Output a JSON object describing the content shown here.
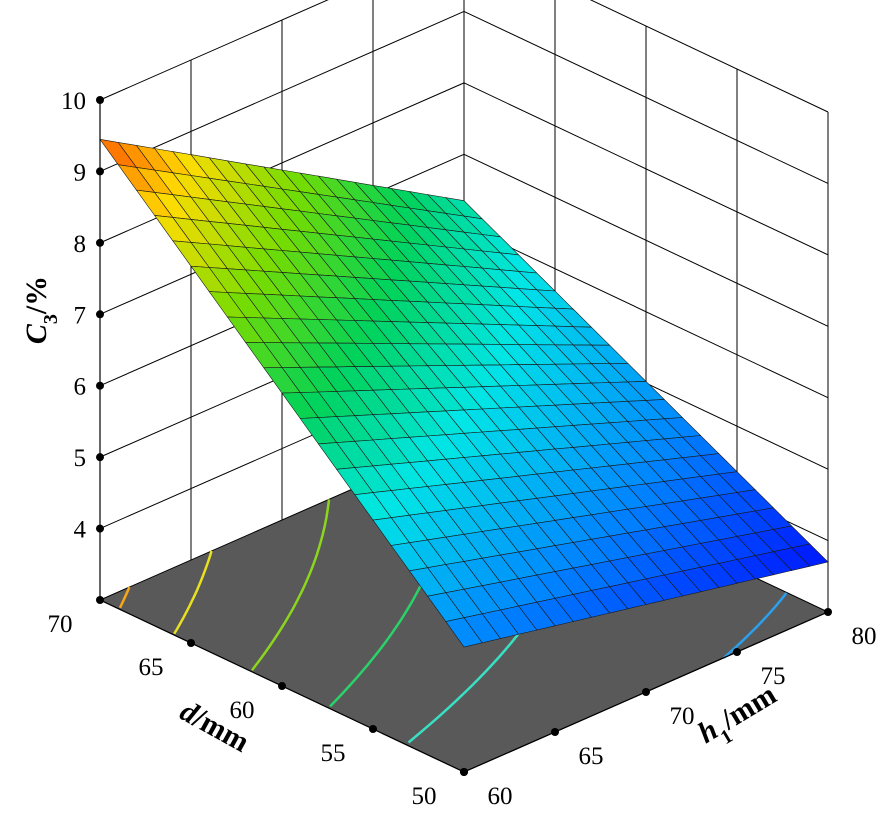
{
  "chart_data": {
    "type": "surface",
    "z_axis": {
      "label_main": "C",
      "label_sub": "3",
      "label_unit": "/%",
      "ticks": [
        "4",
        "5",
        "6",
        "7",
        "8",
        "9",
        "10"
      ],
      "range": [
        3,
        10
      ]
    },
    "d_axis": {
      "label_main": "d",
      "label_unit": "/mm",
      "ticks": [
        "50",
        "55",
        "60",
        "65",
        "70"
      ],
      "range": [
        50,
        70
      ]
    },
    "h1_axis": {
      "label_main": "h",
      "label_sub": "1",
      "label_unit": "/mm",
      "ticks": [
        "60",
        "65",
        "70",
        "75",
        "80"
      ],
      "range": [
        60,
        80
      ]
    },
    "surface_corners": [
      {
        "d": 70,
        "h1": 60,
        "C3": 9.45
      },
      {
        "d": 50,
        "h1": 60,
        "C3": 4.75
      },
      {
        "d": 70,
        "h1": 80,
        "C3": 6.35
      },
      {
        "d": 50,
        "h1": 80,
        "C3": 3.7
      }
    ],
    "grid_divisions": 20,
    "floor_color": "#595959",
    "contour_levels": [
      {
        "C3": 4.0,
        "color": "#2aa0ee"
      },
      {
        "C3": 5.5,
        "color": "#38e0c4"
      },
      {
        "C3": 6.5,
        "color": "#29d36a"
      },
      {
        "C3": 7.5,
        "color": "#8cd61e"
      },
      {
        "C3": 8.5,
        "color": "#e8e020"
      },
      {
        "C3": 9.2,
        "color": "#f7a81a"
      }
    ]
  }
}
